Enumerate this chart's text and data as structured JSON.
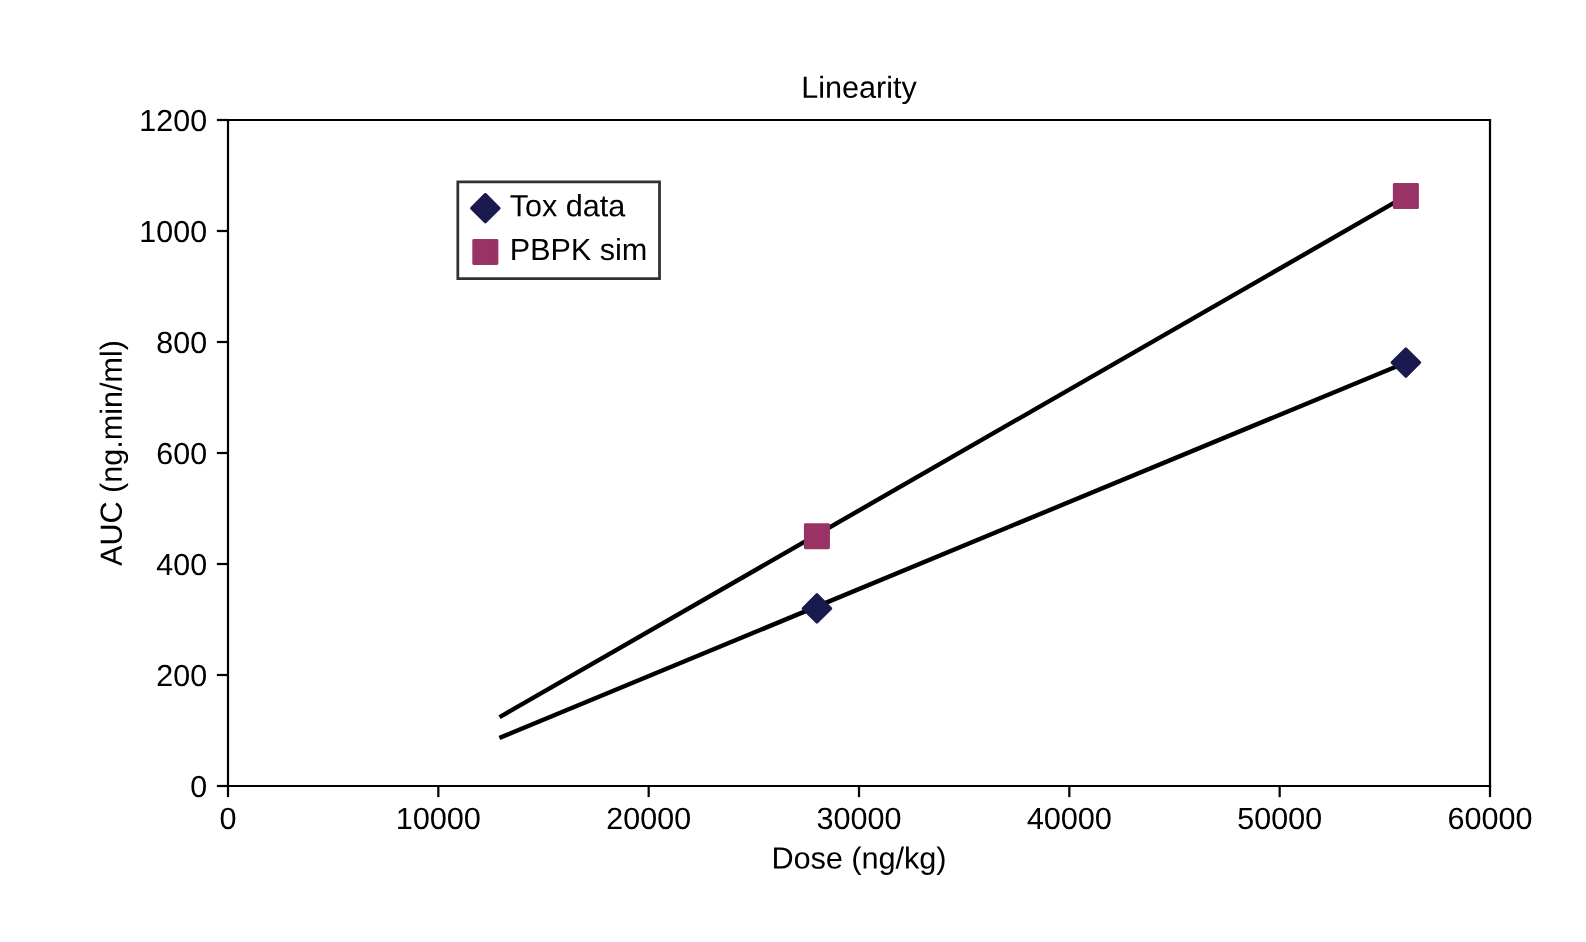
{
  "chart_data": {
    "type": "scatter",
    "title": "Linearity",
    "xlabel": "Dose (ng/kg)",
    "ylabel": "AUC (ng.min/ml)",
    "xlim": [
      0,
      60000
    ],
    "xticks": [
      0,
      10000,
      20000,
      30000,
      40000,
      50000,
      60000
    ],
    "ylim": [
      0,
      1200
    ],
    "yticks": [
      0,
      200,
      400,
      600,
      800,
      1000,
      1200
    ],
    "grid": false,
    "legend": "top left",
    "series": [
      {
        "name": "Tox data",
        "marker": "diamond",
        "color": "#1a1a4e",
        "x": [
          28000,
          56000
        ],
        "values": [
          320,
          763
        ]
      },
      {
        "name": "PBPK sim",
        "marker": "square",
        "color": "#993366",
        "x": [
          28000,
          56000
        ],
        "values": [
          450,
          1063
        ]
      },
      {
        "type": "line",
        "marker": "none",
        "color": "#000000",
        "x": [
          13000,
          56000
        ],
        "values": [
          88,
          763
        ]
      },
      {
        "type": "line",
        "marker": "none",
        "color": "#000000",
        "x": [
          13000,
          56000
        ],
        "values": [
          126,
          1063
        ]
      }
    ]
  }
}
